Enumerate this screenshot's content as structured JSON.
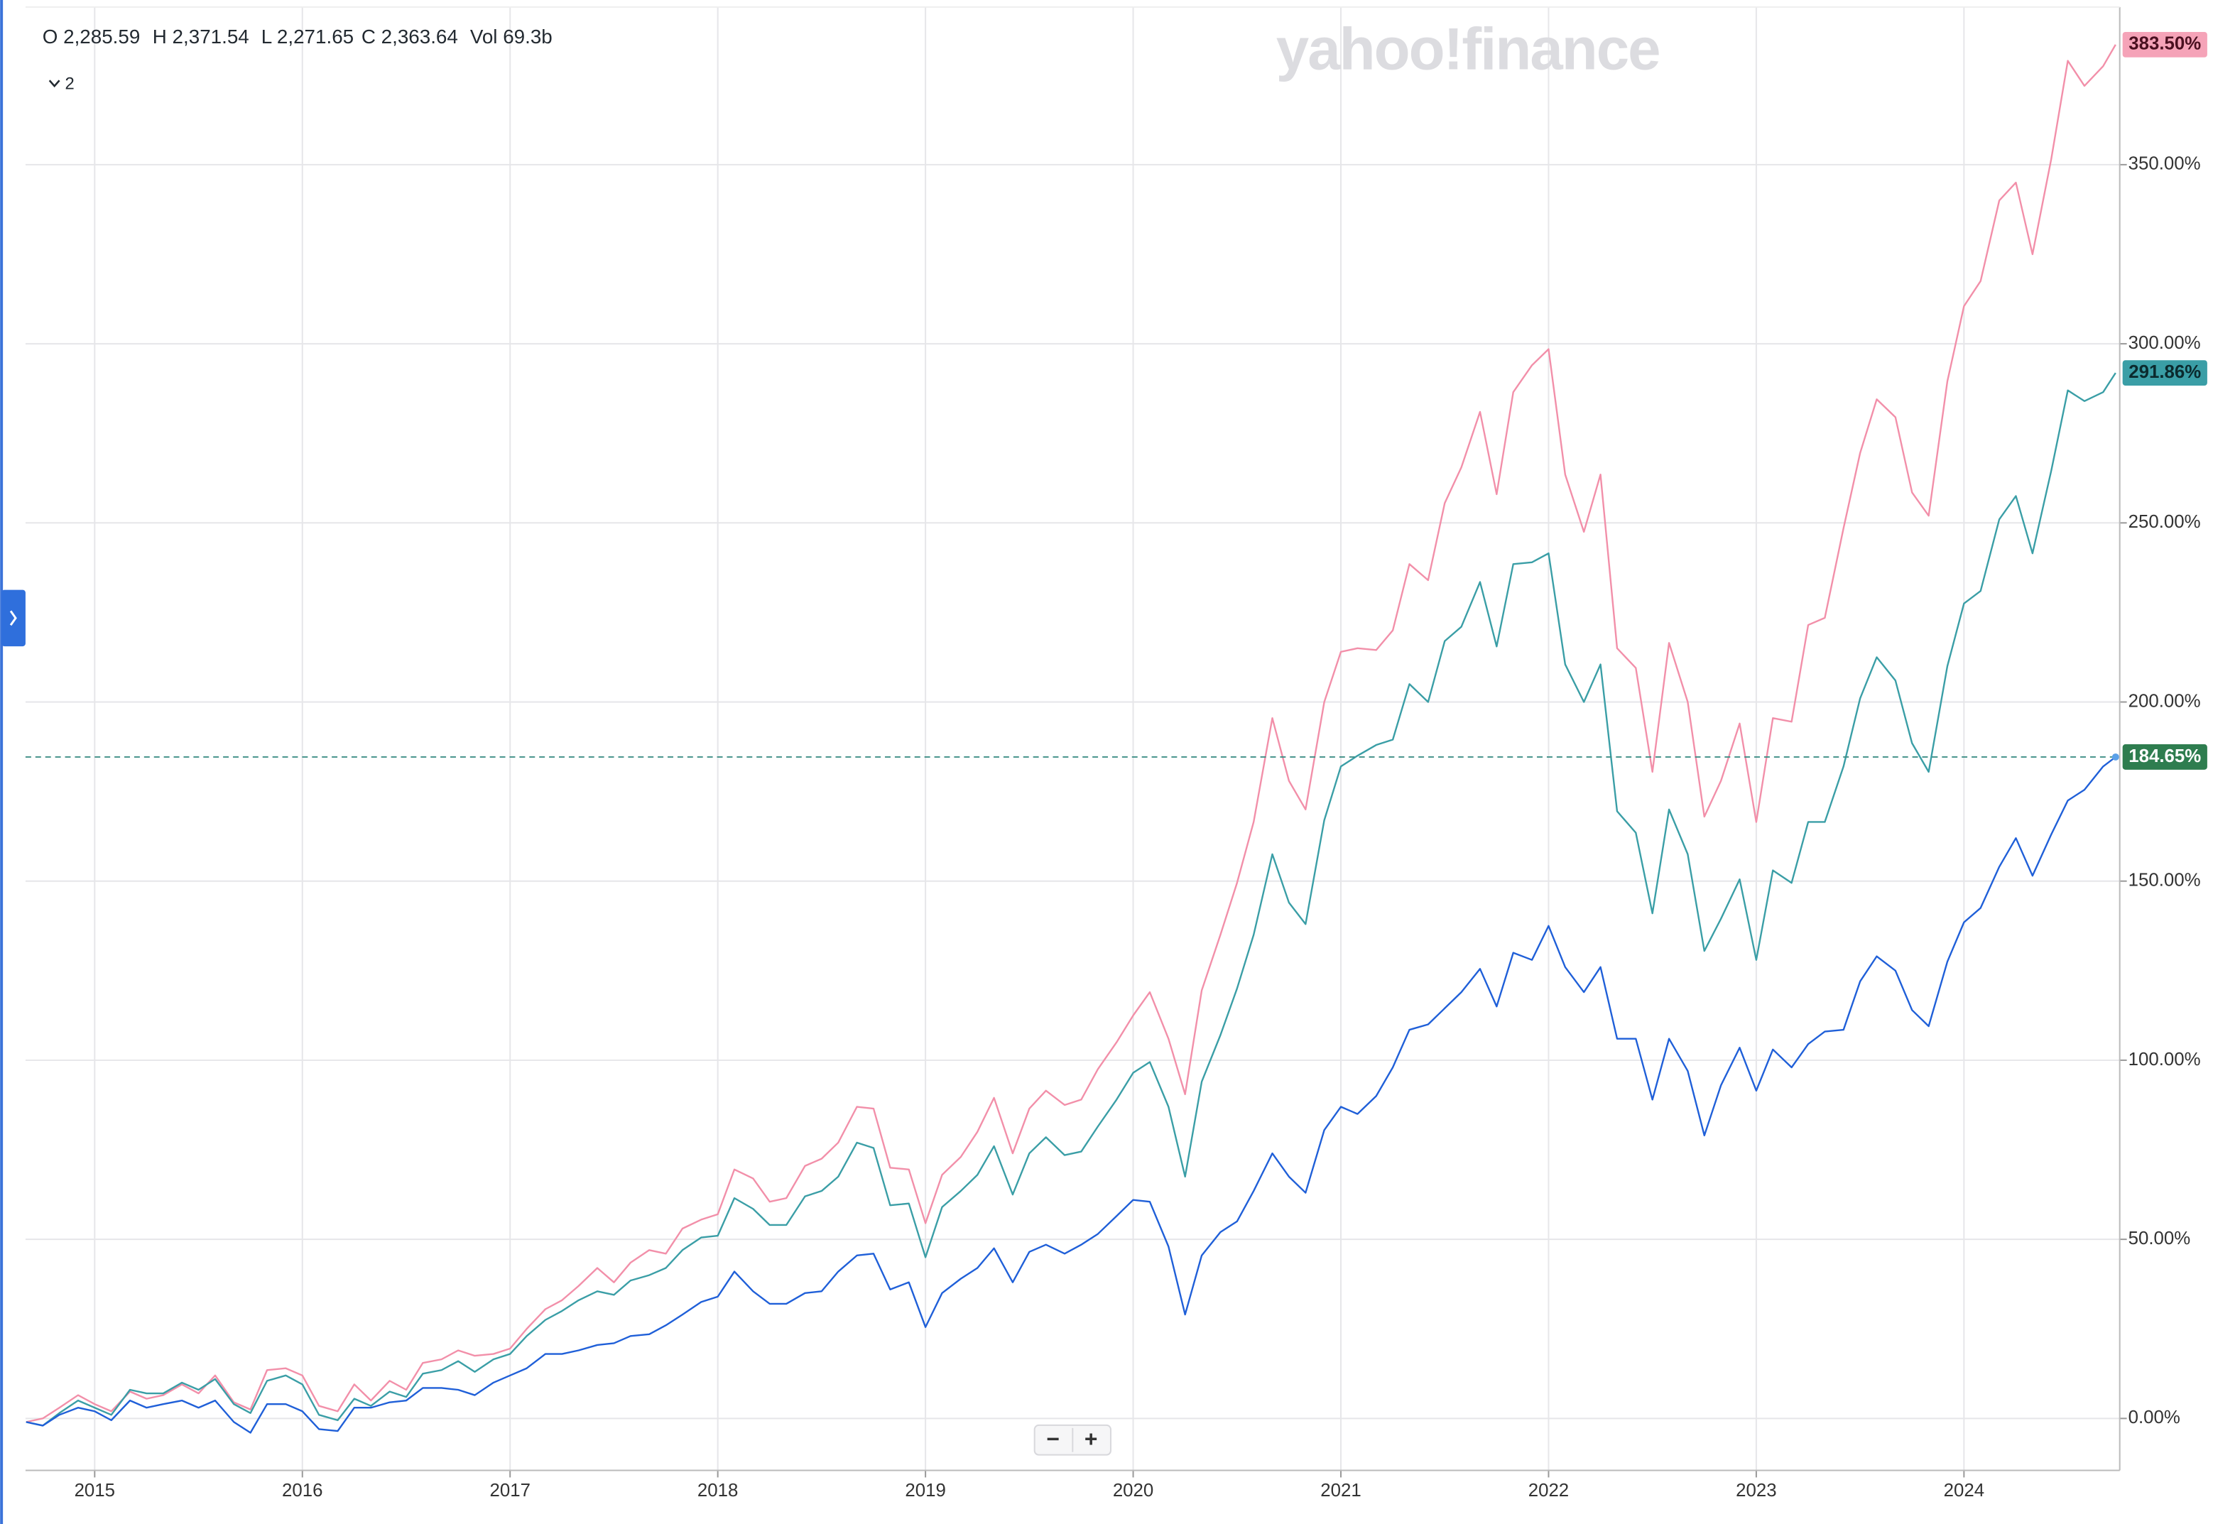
{
  "chart_data": {
    "type": "line",
    "ohlc": [
      "O 2,285.59",
      "H 2,371.54",
      "L 2,271.65",
      "C 2,363.64",
      "Vol 69.3b"
    ],
    "indicator_count": "2",
    "watermark": "yahoo!finance",
    "zoom": [
      "−",
      "+"
    ],
    "xlim": [
      2014.667,
      2024.75
    ],
    "xticks": [
      2015,
      2016,
      2017,
      2018,
      2019,
      2020,
      2021,
      2022,
      2023,
      2024
    ],
    "ylim": [
      -14.5,
      394
    ],
    "yticks": [
      {
        "value": 0,
        "label": "0.00%"
      },
      {
        "value": 50,
        "label": "50.00%"
      },
      {
        "value": 100,
        "label": "100.00%"
      },
      {
        "value": 150,
        "label": "150.00%"
      },
      {
        "value": 200,
        "label": "200.00%"
      },
      {
        "value": 250,
        "label": "250.00%"
      },
      {
        "value": 300,
        "label": "300.00%"
      },
      {
        "value": 350,
        "label": "350.00%"
      }
    ],
    "grid": true,
    "x": [
      2014.67,
      2014.75,
      2014.83,
      2014.92,
      2015,
      2015.08,
      2015.17,
      2015.25,
      2015.33,
      2015.42,
      2015.5,
      2015.58,
      2015.67,
      2015.75,
      2015.83,
      2015.92,
      2016,
      2016.08,
      2016.17,
      2016.25,
      2016.33,
      2016.42,
      2016.5,
      2016.58,
      2016.67,
      2016.75,
      2016.83,
      2016.92,
      2017,
      2017.08,
      2017.17,
      2017.25,
      2017.33,
      2017.42,
      2017.5,
      2017.58,
      2017.67,
      2017.75,
      2017.83,
      2017.92,
      2018,
      2018.08,
      2018.17,
      2018.25,
      2018.33,
      2018.42,
      2018.5,
      2018.58,
      2018.67,
      2018.75,
      2018.83,
      2018.92,
      2019,
      2019.08,
      2019.17,
      2019.25,
      2019.33,
      2019.42,
      2019.5,
      2019.58,
      2019.67,
      2019.75,
      2019.83,
      2019.92,
      2020,
      2020.08,
      2020.17,
      2020.25,
      2020.33,
      2020.42,
      2020.5,
      2020.58,
      2020.67,
      2020.75,
      2020.83,
      2020.92,
      2021,
      2021.08,
      2021.17,
      2021.25,
      2021.33,
      2021.42,
      2021.5,
      2021.58,
      2021.67,
      2021.75,
      2021.83,
      2021.92,
      2022,
      2022.08,
      2022.17,
      2022.25,
      2022.33,
      2022.42,
      2022.5,
      2022.58,
      2022.67,
      2022.75,
      2022.83,
      2022.92,
      2023,
      2023.08,
      2023.17,
      2023.25,
      2023.33,
      2023.42,
      2023.5,
      2023.58,
      2023.67,
      2023.75,
      2023.83,
      2023.92,
      2024,
      2024.08,
      2024.17,
      2024.25,
      2024.33,
      2024.42,
      2024.5,
      2024.58,
      2024.67,
      2024.73
    ],
    "series": [
      {
        "color": "#f28fa9",
        "label_bg": "#f5a3b8",
        "label_color": "#4a1020",
        "last_label": "383.50%",
        "values": [
          -1,
          0,
          3,
          6.5,
          4,
          2,
          7.5,
          5.5,
          6.5,
          9.5,
          7,
          12,
          4.5,
          2.5,
          13.5,
          14,
          12,
          3.5,
          2,
          9.5,
          5,
          10.5,
          8,
          15.5,
          16.5,
          19,
          17.5,
          18,
          19.5,
          25,
          30.5,
          33,
          37,
          42,
          38,
          43.5,
          47,
          46,
          53,
          55.5,
          57,
          69.5,
          67,
          60.5,
          61.5,
          70.5,
          72.5,
          77,
          87,
          86.5,
          70,
          69.5,
          54.5,
          68,
          73,
          80,
          89.5,
          74,
          86.5,
          91.5,
          87.5,
          89,
          97.5,
          105,
          112.5,
          119,
          106,
          90.5,
          119.5,
          135,
          149.5,
          166.5,
          195.5,
          178,
          170,
          200,
          214,
          215,
          214.5,
          220,
          238.5,
          234,
          255.5,
          265.5,
          281,
          258,
          286.5,
          294,
          298.5,
          263.5,
          247.5,
          263.5,
          215,
          209.5,
          180.5,
          216.5,
          200,
          168,
          178,
          194,
          166.5,
          195.5,
          194.5,
          221.5,
          223.5,
          248.5,
          269.5,
          284.5,
          279.5,
          258.5,
          252,
          289.5,
          310.5,
          317.5,
          340,
          345,
          325,
          351.5,
          379,
          372,
          377.5,
          383.5
        ]
      },
      {
        "color": "#3a9ea6",
        "label_bg": "#3a9ea6",
        "label_color": "#0b2a2e",
        "last_label": "291.86%",
        "values": [
          -1,
          -2,
          1.5,
          5,
          3,
          1,
          8,
          7,
          7,
          10,
          8,
          11,
          4,
          1.5,
          10.5,
          12,
          9.5,
          1,
          -0.5,
          5.5,
          3.5,
          7.5,
          6,
          12.5,
          13.5,
          16,
          13,
          16.5,
          18,
          23,
          27.5,
          30,
          33,
          35.5,
          34.5,
          38.5,
          40,
          42,
          47,
          50.5,
          51,
          61.5,
          58.5,
          54,
          54,
          62,
          63.5,
          67.5,
          77,
          75.5,
          59.5,
          60,
          45,
          59,
          63.5,
          68,
          76,
          62.5,
          74,
          78.5,
          73.5,
          74.5,
          81.5,
          89,
          96.5,
          99.5,
          87,
          67.5,
          94,
          107,
          120,
          135,
          157.5,
          144,
          138,
          167,
          182,
          185,
          188,
          189.5,
          205,
          200,
          217,
          221,
          233.5,
          215.5,
          238.5,
          239,
          241.5,
          210.5,
          200,
          210.5,
          169.5,
          163.5,
          141,
          170,
          157.5,
          130.5,
          139.5,
          150.5,
          128,
          153,
          149.5,
          166.5,
          166.5,
          182,
          201,
          212.5,
          206,
          188.5,
          180.5,
          210,
          227.5,
          231,
          251,
          257.5,
          241.5,
          264.5,
          287,
          284,
          286.5,
          291.86
        ]
      },
      {
        "color": "#1f5fd8",
        "label_bg": "#2e7d4f",
        "label_color": "#ffffff",
        "last_label": "184.65%",
        "values": [
          -1,
          -2,
          1,
          3,
          2,
          -0.5,
          5,
          3,
          4,
          5,
          3,
          5,
          -1,
          -4,
          4,
          4,
          2,
          -3,
          -3.5,
          3,
          3,
          4.5,
          5,
          8.5,
          8.5,
          8,
          6.5,
          10,
          12,
          14,
          18,
          18,
          19,
          20.5,
          21,
          23,
          23.5,
          26,
          29,
          32.5,
          34,
          41,
          35.5,
          32,
          32,
          35,
          35.5,
          41,
          45.5,
          46,
          36,
          38,
          25.5,
          35,
          39,
          42,
          47.5,
          38,
          46.5,
          48.5,
          46,
          48.5,
          51.5,
          56.5,
          61,
          60.5,
          48,
          29,
          45.5,
          52,
          55,
          63.5,
          74,
          67.5,
          63,
          80.5,
          87,
          85,
          90,
          98,
          108.5,
          110,
          114.5,
          119,
          125.5,
          115,
          130,
          128,
          137.5,
          126,
          119,
          126,
          106,
          106,
          89,
          106,
          97,
          79,
          93,
          103.5,
          91.5,
          103,
          98,
          104.5,
          108,
          108.5,
          122,
          129,
          125,
          114,
          109.5,
          127.5,
          138.5,
          142.5,
          154,
          162,
          151.5,
          163,
          172.5,
          175.5,
          182,
          184.65
        ]
      }
    ]
  }
}
